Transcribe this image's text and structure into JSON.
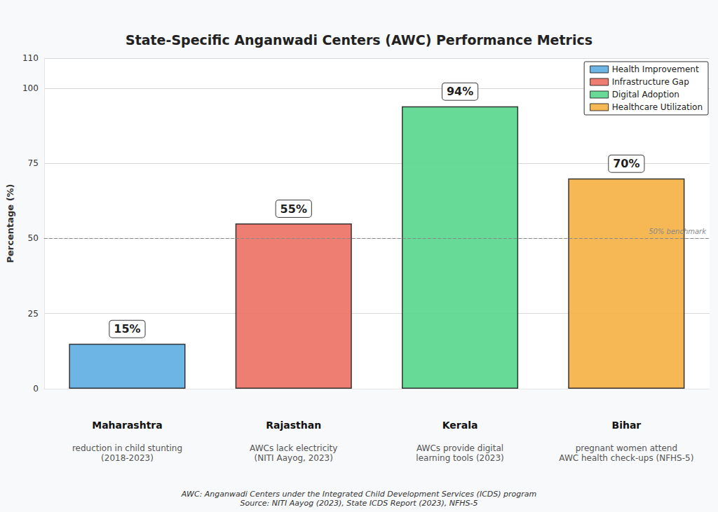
{
  "chart_data": {
    "type": "bar",
    "title": "State-Specific Anganwadi Centers (AWC) Performance Metrics",
    "y_label": "Percentage (%)",
    "categories": [
      "Maharashtra",
      "Rajasthan",
      "Kerala",
      "Bihar"
    ],
    "category_descriptions": [
      "reduction in child stunting\n(2018-2023)",
      "AWCs lack electricity\n(NITI Aayog, 2023)",
      "AWCs provide digital\nlearning tools (2023)",
      "pregnant women attend\nAWC health check-ups (NFHS-5)"
    ],
    "series": [
      {
        "name": "Health Improvement",
        "color": "#5dade2",
        "values": [
          15,
          null,
          null,
          null
        ],
        "value_labels": [
          "15%",
          null,
          null,
          null
        ]
      },
      {
        "name": "Infrastructure Gap",
        "color": "#ec7063",
        "values": [
          null,
          55,
          null,
          null
        ],
        "value_labels": [
          null,
          "55%",
          null,
          null
        ]
      },
      {
        "name": "Digital Adoption",
        "color": "#58d68d",
        "values": [
          null,
          null,
          94,
          null
        ],
        "value_labels": [
          null,
          null,
          "94%",
          null
        ]
      },
      {
        "name": "Healthcare Utilization",
        "color": "#f5b041",
        "values": [
          null,
          null,
          null,
          70
        ],
        "value_labels": [
          null,
          null,
          null,
          "70%"
        ]
      }
    ],
    "reference_line": {
      "value": 50,
      "label": "50% benchmark"
    },
    "notes": [
      "AWC: Anganwadi Centers under the Integrated Child Development Services (ICDS) program",
      "Source: NITI Aayog (2023), State ICDS Report (2023), NFHS-5"
    ],
    "ylim": [
      0,
      110
    ],
    "yticks": [
      0,
      25,
      50,
      75,
      100
    ],
    "grid": true,
    "legend": "upper right",
    "data_labels": true
  }
}
